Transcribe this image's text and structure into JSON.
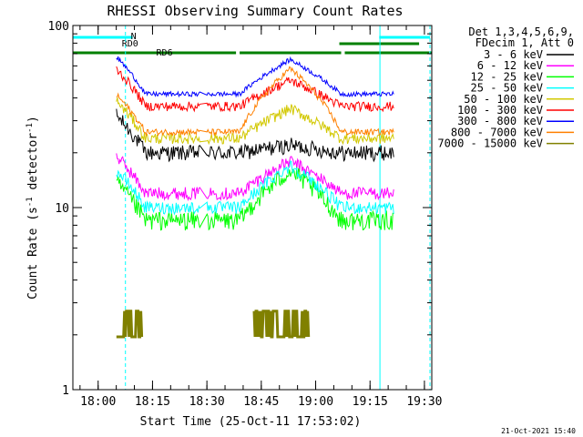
{
  "chart_data": {
    "type": "line",
    "title": "RHESSI Observing Summary Count Rates",
    "xlabel": "Start Time (25-Oct-11 17:53:02)",
    "ylabel_main": "Count Rate (s",
    "ylabel_sup": "-1",
    "ylabel_mid": " detector",
    "ylabel_end": ")",
    "y_scale": "log",
    "ylim": [
      1,
      100
    ],
    "y_ticks": [
      {
        "value": 1,
        "label": "1"
      },
      {
        "value": 10,
        "label": "10"
      },
      {
        "value": 100,
        "label": "100"
      }
    ],
    "x_unit": "minutes since 17:53:02",
    "xlim": [
      0,
      99
    ],
    "x_ticks": [
      {
        "value": 6.97,
        "label": "18:00"
      },
      {
        "value": 21.97,
        "label": "18:15"
      },
      {
        "value": 36.97,
        "label": "18:30"
      },
      {
        "value": 51.97,
        "label": "18:45"
      },
      {
        "value": 66.97,
        "label": "19:00"
      },
      {
        "value": 81.97,
        "label": "19:15"
      },
      {
        "value": 96.97,
        "label": "19:30"
      }
    ],
    "legend_header": [
      "Det 1,3,4,5,6,9,",
      "FDecim 1, Att 0"
    ],
    "legend_placement": "right",
    "series": [
      {
        "name": "3 - 6 keV",
        "color": "#000000"
      },
      {
        "name": "6 - 12 keV",
        "color": "#ff00ff"
      },
      {
        "name": "12 - 25 keV",
        "color": "#00ff00"
      },
      {
        "name": "25 - 50 keV",
        "color": "#00ffff"
      },
      {
        "name": "50 - 100 keV",
        "color": "#d2c800"
      },
      {
        "name": "100 - 300 keV",
        "color": "#ff0000"
      },
      {
        "name": "300 - 800 keV",
        "color": "#0000ff"
      },
      {
        "name": "800 - 7000 keV",
        "color": "#ff8000"
      },
      {
        "name": "7000 - 15000 keV",
        "color": "#808000"
      }
    ],
    "annotations": [
      {
        "label": "N",
        "color": "#00ffff"
      },
      {
        "label": "RD0",
        "color": "#008000"
      },
      {
        "label": "RD6",
        "color": "#008000"
      }
    ],
    "footer_date": "21-Oct-2021 15:40"
  }
}
